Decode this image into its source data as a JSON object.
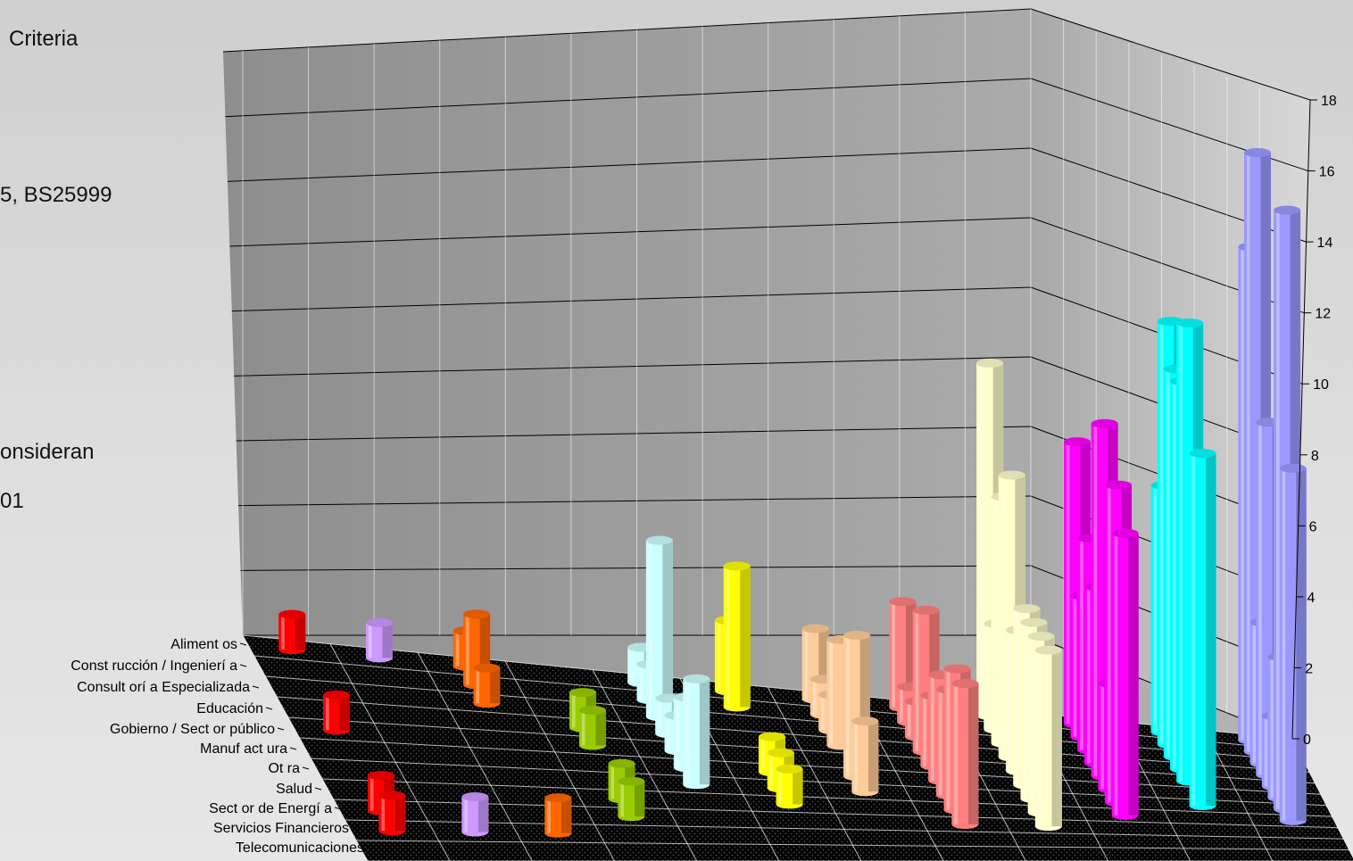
{
  "background_text": [
    "Criteria",
    "5, BS25999",
    "onsideran",
    "01"
  ],
  "chart_data": {
    "type": "bar",
    "subtype": "3d-cylinder-grid",
    "title": "",
    "xlabel": "",
    "ylabel": "",
    "ylim": [
      0,
      18
    ],
    "yticks": [
      0,
      2,
      4,
      6,
      8,
      10,
      12,
      14,
      16,
      18
    ],
    "grid": true,
    "legend": "none",
    "categories": [
      "Alimentos",
      "Construcción / Ingeniería",
      "Consultoría Especializada",
      "Educación",
      "Gobierno / Sector público",
      "Manufactura",
      "Otra",
      "Salud",
      "Sector de Energía",
      "Servicios Financieros",
      "Telecomunicaciones"
    ],
    "category_labels_display": [
      "Aliment os",
      "Const rucción / Ingenierí a",
      "Consult orí a Especializada",
      "Educación",
      "Gobierno / Sect or público",
      "Manuf act ura",
      "Ot ra",
      "Salud",
      "Sect or de Energí a",
      "Servicios Financieros",
      "Telecomunicaciones"
    ],
    "series": [
      {
        "color": "#ff0000",
        "values": [
          1,
          0,
          0,
          0,
          1,
          0,
          0,
          0,
          1,
          1,
          0
        ]
      },
      {
        "color": "#cc99ff",
        "values": [
          1,
          0,
          0,
          0,
          0,
          0,
          0,
          0,
          0,
          1,
          0
        ]
      },
      {
        "color": "#ff6600",
        "values": [
          1,
          2,
          1,
          0,
          0,
          0,
          0,
          0,
          0,
          1,
          0
        ]
      },
      {
        "color": "#99cc00",
        "values": [
          0,
          0,
          0,
          1,
          1,
          0,
          0,
          1,
          1,
          0,
          0
        ]
      },
      {
        "color": "#ccffff",
        "values": [
          1,
          1,
          5,
          1,
          1,
          2,
          3,
          0,
          0,
          0,
          0
        ]
      },
      {
        "color": "#ffff00",
        "values": [
          2,
          4,
          0,
          0,
          0,
          1,
          1,
          1,
          0,
          0,
          0
        ]
      },
      {
        "color": "#ffcc99",
        "values": [
          2,
          1,
          1,
          3,
          0,
          4,
          2,
          0,
          0,
          0,
          0
        ]
      },
      {
        "color": "#ff8080",
        "values": [
          3,
          1,
          1,
          4,
          2,
          3,
          3,
          4,
          4,
          0,
          0
        ]
      },
      {
        "color": "#ffffcc",
        "values": [
          10,
          3,
          7,
          8,
          4,
          5,
          5,
          5,
          5,
          0,
          0
        ]
      },
      {
        "color": "#ff00ff",
        "values": [
          8,
          4,
          6,
          5,
          10,
          3,
          9,
          8,
          0,
          0,
          0
        ]
      },
      {
        "color": "#00ffff",
        "values": [
          7,
          12,
          11,
          11,
          13,
          0,
          10,
          0,
          0,
          0,
          0
        ]
      },
      {
        "color": "#9999ff",
        "values": [
          14,
          17,
          4,
          10,
          2,
          4,
          17,
          10,
          0,
          0,
          0
        ]
      }
    ]
  }
}
